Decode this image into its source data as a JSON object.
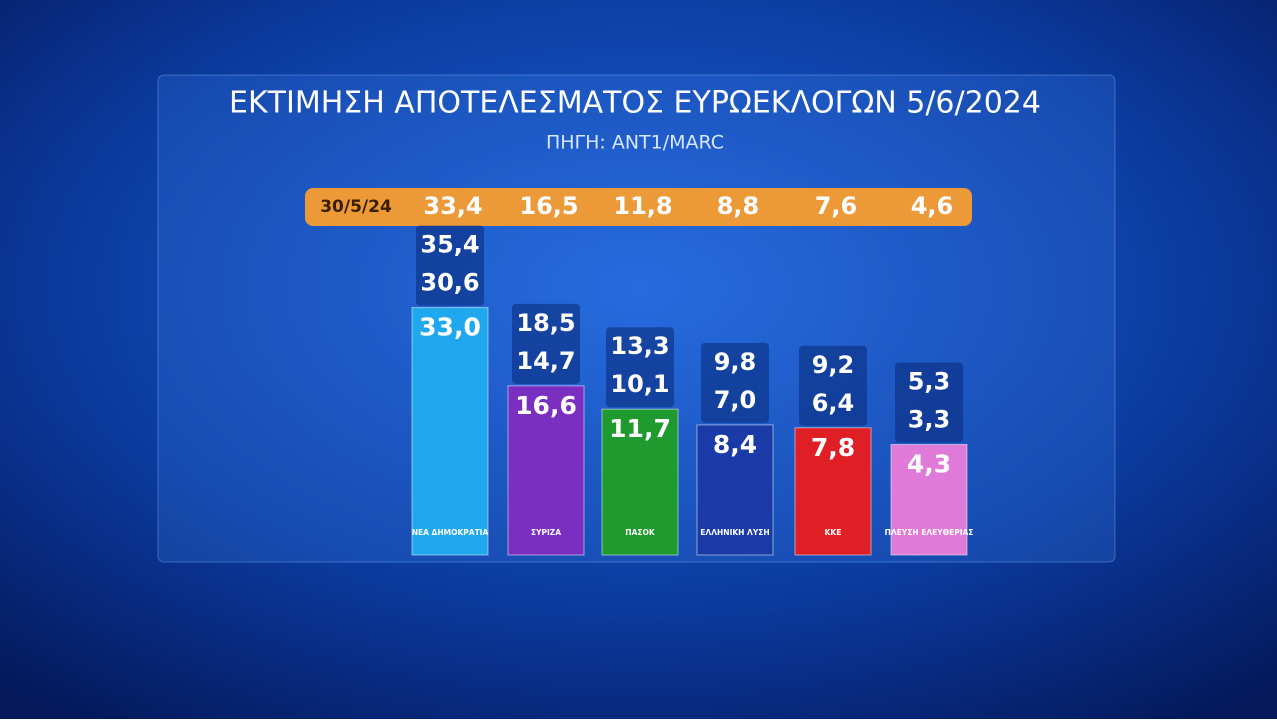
{
  "chart_data": {
    "type": "bar",
    "title": "ΕΚΤΙΜΗΣΗ ΑΠΟΤΕΛΕΣΜΑΤΟΣ ΕΥΡΩΕΚΛΟΓΩΝ 5/6/2024",
    "subtitle": "ΠΗΓΗ: ΑΝΤ1/MARC",
    "categories": [
      "ΝΕΑ ΔΗΜΟΚΡΑΤΙΑ",
      "ΣΥΡΙΖΑ",
      "ΠΑΣΟΚ",
      "ΕΛΛΗΝΙΚΗ ΛΥΣΗ",
      "ΚΚΕ",
      "ΠΛΕΥΣΗ ΕΛΕΥΘΕΡΙΑΣ"
    ],
    "values": [
      33.0,
      16.6,
      11.7,
      8.4,
      7.8,
      4.3
    ],
    "value_labels": [
      "33,0",
      "16,6",
      "11,7",
      "8,4",
      "7,8",
      "4,3"
    ],
    "colors": [
      "#1fa8ee",
      "#7a2fc0",
      "#1f9a2e",
      "#1a3aa8",
      "#e01e25",
      "#e07ad8"
    ],
    "high": [
      35.4,
      18.5,
      13.3,
      9.8,
      9.2,
      5.3
    ],
    "high_labels": [
      "35,4",
      "18,5",
      "13,3",
      "9,8",
      "9,2",
      "5,3"
    ],
    "low": [
      30.6,
      14.7,
      10.1,
      7.0,
      6.4,
      3.3
    ],
    "low_labels": [
      "30,6",
      "14,7",
      "10,1",
      "7,0",
      "6,4",
      "3,3"
    ],
    "previous": {
      "label": "30/5/24",
      "values": [
        33.4,
        16.5,
        11.8,
        8.8,
        7.6,
        4.6
      ],
      "value_labels": [
        "33,4",
        "16,5",
        "11,8",
        "8,8",
        "7,6",
        "4,6"
      ]
    }
  }
}
